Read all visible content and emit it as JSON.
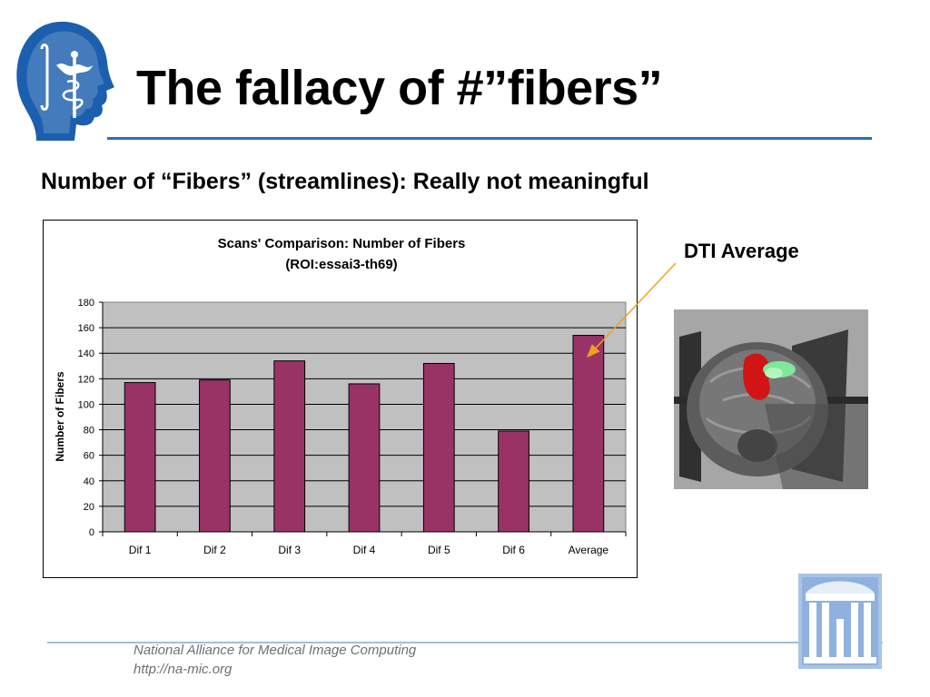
{
  "slide": {
    "title": "The fallacy of #”fibers”",
    "subtitle": "Number of “Fibers” (streamlines): Really not meaningful",
    "dti_label": "DTI Average",
    "footer_org": "National Alliance for Medical Image Computing",
    "footer_url": "http://na-mic.org"
  },
  "icons": {
    "top_logo": "head-caduceus-logo",
    "bottom_logo": "unc-old-well-logo",
    "image": "dti-brain-fiber-rendering"
  },
  "colors": {
    "accent": "#2a6fb5",
    "bar": "#993366",
    "plot_bg": "#c0c0c0"
  },
  "chart_data": {
    "type": "bar",
    "title": "Scans' Comparison: Number of Fibers",
    "subtitle": "(ROI:essai3-th69)",
    "xlabel": "",
    "ylabel": "Number of Fibers",
    "categories": [
      "Dif 1",
      "Dif 2",
      "Dif 3",
      "Dif 4",
      "Dif 5",
      "Dif 6",
      "Average"
    ],
    "values": [
      117,
      119,
      134,
      116,
      132,
      79,
      154
    ],
    "ylim": [
      0,
      180
    ],
    "yticks": [
      0,
      20,
      40,
      60,
      80,
      100,
      120,
      140,
      160,
      180
    ],
    "grid": true,
    "legend": "none"
  }
}
